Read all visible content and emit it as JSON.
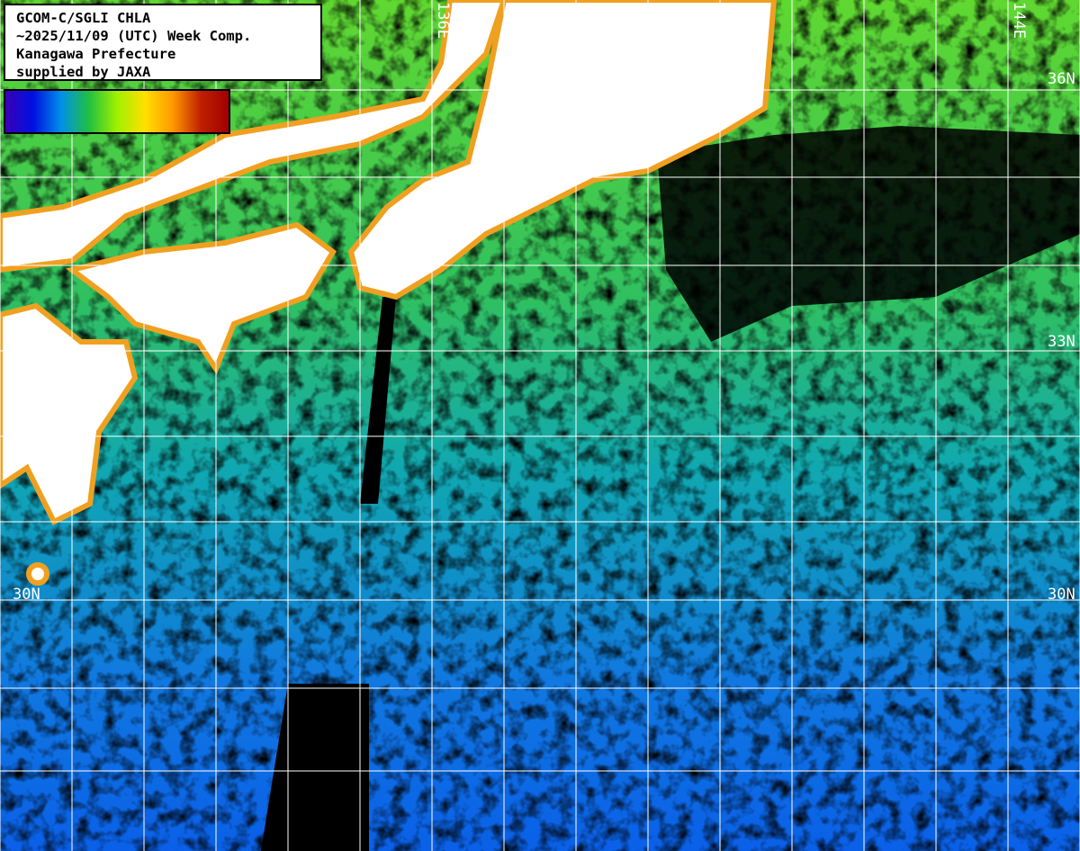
{
  "title_block": {
    "lines": [
      "GCOM-C/SGLI CHLA",
      "~2025/11/09 (UTC) Week Comp.",
      "Kanagawa Prefecture",
      "supplied by JAXA"
    ]
  },
  "colorbar": {
    "stops": [
      "#3a00b8",
      "#0010e0",
      "#0090e8",
      "#20c040",
      "#a0f000",
      "#ffe000",
      "#ff9800",
      "#c02000",
      "#a00000"
    ]
  },
  "grid": {
    "lon_labels": [
      "136E",
      "144E"
    ],
    "lat_labels": [
      "36N",
      "33N",
      "30N",
      "30N"
    ]
  },
  "colors": {
    "land": "#ffffff",
    "no_data": "#000000",
    "grid": "#ffffff"
  }
}
